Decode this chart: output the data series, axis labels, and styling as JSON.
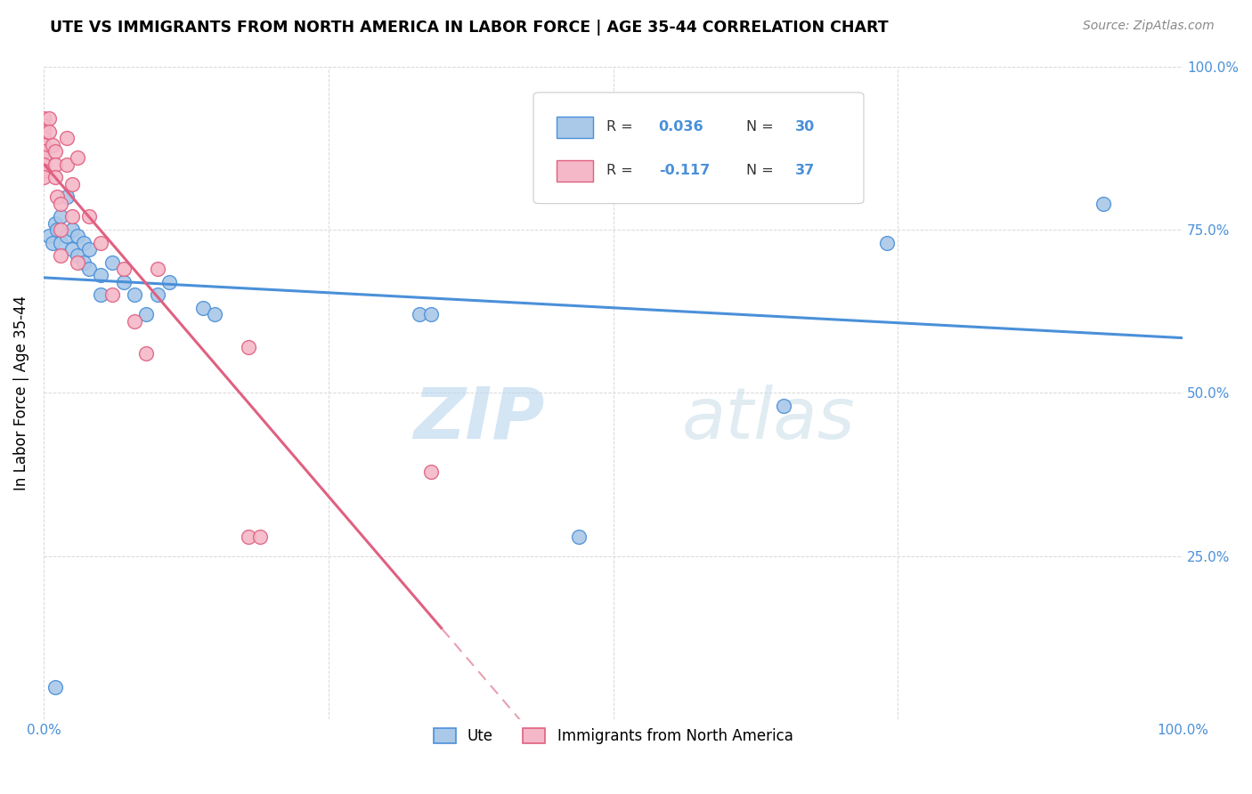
{
  "title": "UTE VS IMMIGRANTS FROM NORTH AMERICA IN LABOR FORCE | AGE 35-44 CORRELATION CHART",
  "source": "Source: ZipAtlas.com",
  "ylabel": "In Labor Force | Age 35-44",
  "xlim": [
    0,
    1
  ],
  "ylim": [
    0,
    1
  ],
  "watermark_zip": "ZIP",
  "watermark_atlas": "atlas",
  "blue_color": "#aac8e8",
  "pink_color": "#f4b8c8",
  "blue_line_color": "#4a90d9",
  "pink_line_color": "#e06080",
  "pink_line_dash_color": "#e8a0b0",
  "background": "#ffffff",
  "grid_color": "#d8d8d8",
  "blue_scatter": [
    [
      0.005,
      0.74
    ],
    [
      0.008,
      0.73
    ],
    [
      0.01,
      0.76
    ],
    [
      0.012,
      0.75
    ],
    [
      0.015,
      0.77
    ],
    [
      0.015,
      0.73
    ],
    [
      0.02,
      0.8
    ],
    [
      0.02,
      0.74
    ],
    [
      0.025,
      0.75
    ],
    [
      0.025,
      0.72
    ],
    [
      0.03,
      0.74
    ],
    [
      0.03,
      0.71
    ],
    [
      0.035,
      0.73
    ],
    [
      0.035,
      0.7
    ],
    [
      0.04,
      0.72
    ],
    [
      0.04,
      0.69
    ],
    [
      0.05,
      0.68
    ],
    [
      0.05,
      0.65
    ],
    [
      0.06,
      0.7
    ],
    [
      0.07,
      0.67
    ],
    [
      0.08,
      0.65
    ],
    [
      0.09,
      0.62
    ],
    [
      0.1,
      0.65
    ],
    [
      0.11,
      0.67
    ],
    [
      0.14,
      0.63
    ],
    [
      0.15,
      0.62
    ],
    [
      0.33,
      0.62
    ],
    [
      0.34,
      0.62
    ],
    [
      0.47,
      0.28
    ],
    [
      0.01,
      0.05
    ],
    [
      0.65,
      0.48
    ],
    [
      0.74,
      0.73
    ],
    [
      0.93,
      0.79
    ]
  ],
  "pink_scatter": [
    [
      0.0,
      0.92
    ],
    [
      0.0,
      0.91
    ],
    [
      0.0,
      0.9
    ],
    [
      0.0,
      0.89
    ],
    [
      0.0,
      0.88
    ],
    [
      0.0,
      0.87
    ],
    [
      0.0,
      0.86
    ],
    [
      0.0,
      0.85
    ],
    [
      0.0,
      0.84
    ],
    [
      0.0,
      0.83
    ],
    [
      0.005,
      0.92
    ],
    [
      0.005,
      0.9
    ],
    [
      0.008,
      0.88
    ],
    [
      0.01,
      0.87
    ],
    [
      0.01,
      0.85
    ],
    [
      0.01,
      0.83
    ],
    [
      0.012,
      0.8
    ],
    [
      0.015,
      0.79
    ],
    [
      0.015,
      0.75
    ],
    [
      0.015,
      0.71
    ],
    [
      0.02,
      0.89
    ],
    [
      0.02,
      0.85
    ],
    [
      0.025,
      0.82
    ],
    [
      0.025,
      0.77
    ],
    [
      0.03,
      0.86
    ],
    [
      0.03,
      0.7
    ],
    [
      0.04,
      0.77
    ],
    [
      0.05,
      0.73
    ],
    [
      0.06,
      0.65
    ],
    [
      0.07,
      0.69
    ],
    [
      0.08,
      0.61
    ],
    [
      0.09,
      0.56
    ],
    [
      0.1,
      0.69
    ],
    [
      0.18,
      0.57
    ],
    [
      0.18,
      0.28
    ],
    [
      0.19,
      0.28
    ],
    [
      0.34,
      0.38
    ]
  ]
}
